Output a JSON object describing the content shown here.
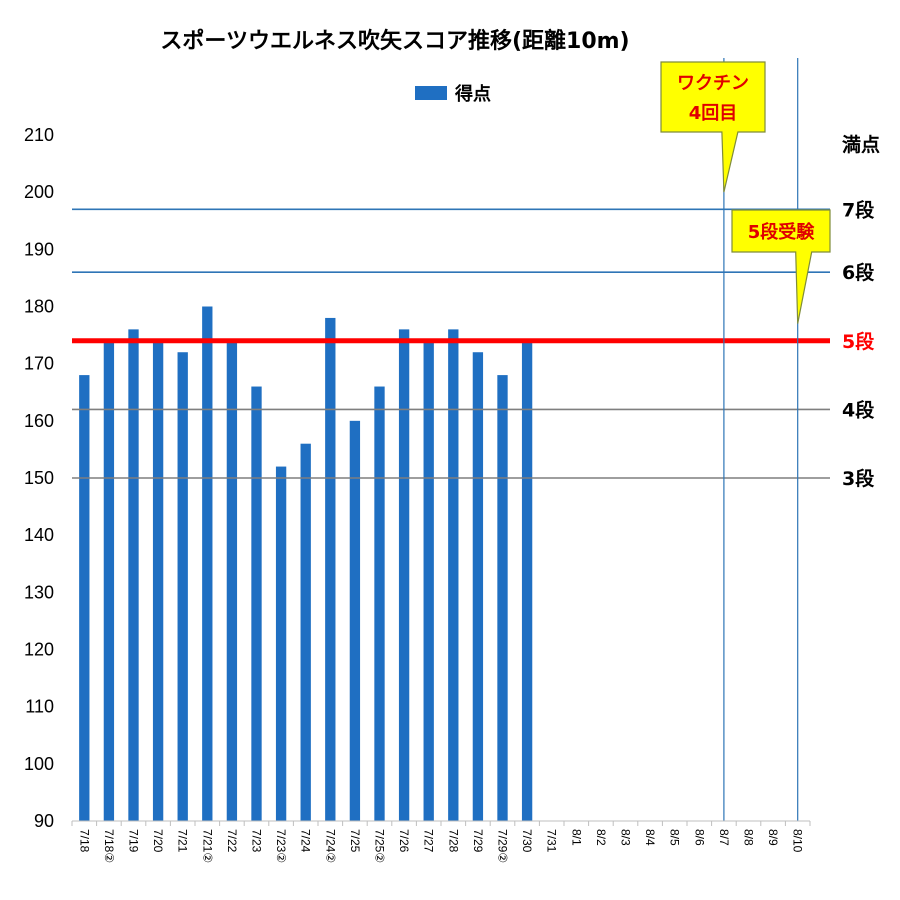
{
  "chart_data": {
    "type": "bar",
    "title": "スポーツウエルネス吹矢スコア推移(距離10m)",
    "legend": {
      "label": "得点",
      "placement": "top-center"
    },
    "ylim": [
      90,
      210
    ],
    "yticks": [
      90,
      100,
      110,
      120,
      130,
      140,
      150,
      160,
      170,
      180,
      190,
      200,
      210
    ],
    "grid": false,
    "categories": [
      "7/18",
      "7/18②",
      "7/19",
      "7/20",
      "7/21",
      "7/21②",
      "7/22",
      "7/23",
      "7/23②",
      "7/24",
      "7/24②",
      "7/25",
      "7/25②",
      "7/26",
      "7/27",
      "7/28",
      "7/29",
      "7/29②",
      "7/30",
      "7/31",
      "8/1",
      "8/2",
      "8/3",
      "8/4",
      "8/5",
      "8/6",
      "8/7",
      "8/8",
      "8/9",
      "8/10"
    ],
    "series": [
      {
        "name": "得点",
        "color": "#1f6fc2",
        "values": [
          168,
          174,
          176,
          174,
          172,
          180,
          174,
          166,
          152,
          156,
          178,
          160,
          166,
          176,
          174,
          176,
          172,
          168,
          174,
          null,
          null,
          null,
          null,
          null,
          null,
          null,
          null,
          null,
          null,
          null
        ]
      }
    ],
    "reference_lines": [
      {
        "label": "満点",
        "value": 210,
        "color": "#000000",
        "drawn": false
      },
      {
        "label": "7段",
        "value": 197,
        "color": "#2e75b6"
      },
      {
        "label": "6段",
        "value": 186,
        "color": "#2e75b6"
      },
      {
        "label": "5段",
        "value": 174,
        "color": "#ff0000",
        "label_color": "#ff0000"
      },
      {
        "label": "4段",
        "value": 162,
        "color": "#7f7f7f"
      },
      {
        "label": "3段",
        "value": 150,
        "color": "#7f7f7f"
      }
    ],
    "event_lines": [
      {
        "category": "8/7",
        "label_lines": [
          "ワクチン",
          "4回目"
        ],
        "pointer_value": 200
      },
      {
        "category": "8/10",
        "label_lines": [
          "5段受験"
        ],
        "pointer_value": 177
      }
    ],
    "callout_color": "#ffff00"
  }
}
